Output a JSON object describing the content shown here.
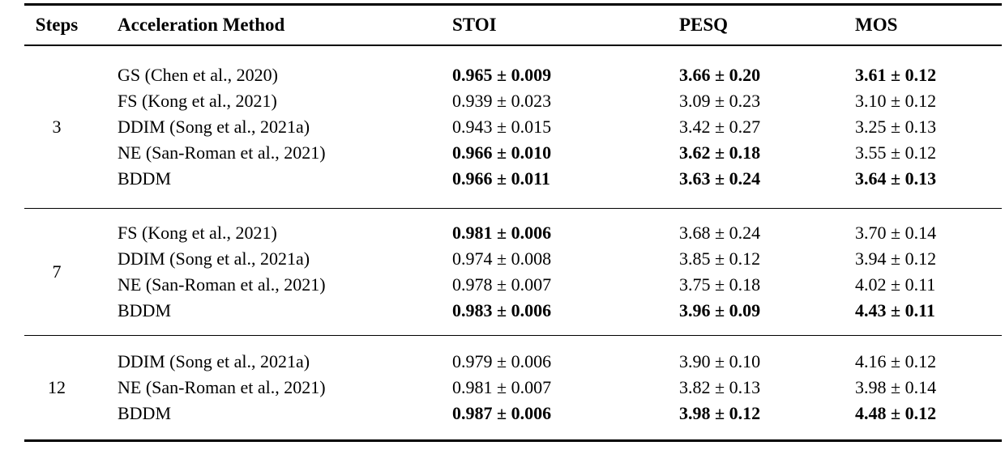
{
  "page": {
    "background": "#ffffff",
    "text_color": "#000000",
    "rule_color": "#000000"
  },
  "table": {
    "headers": {
      "steps": "Steps",
      "method": "Acceleration Method",
      "stoi": "STOI",
      "pesq": "PESQ",
      "mos": "MOS"
    },
    "sections": [
      {
        "steps": "3",
        "rows": [
          {
            "method": "GS (Chen et al., 2020)",
            "stoi": {
              "text": "0.965 ± 0.009",
              "style": "bold"
            },
            "pesq": {
              "text": "3.66 ± 0.20",
              "style": "bold"
            },
            "mos": {
              "text": "3.61 ± 0.12",
              "style": "bold"
            }
          },
          {
            "method": "FS (Kong et al., 2021)",
            "stoi": {
              "text": "0.939 ± 0.023",
              "style": "normal"
            },
            "pesq": {
              "text": "3.09 ± 0.23",
              "style": "normal"
            },
            "mos": {
              "text": "3.10 ± 0.12",
              "style": "normal"
            }
          },
          {
            "method": "DDIM (Song et al., 2021a)",
            "stoi": {
              "text": "0.943 ± 0.015",
              "style": "normal"
            },
            "pesq": {
              "text": "3.42 ± 0.27",
              "style": "normal"
            },
            "mos": {
              "text": "3.25 ± 0.13",
              "style": "normal"
            }
          },
          {
            "method": "NE (San-Roman et al., 2021)",
            "stoi": {
              "text": "0.966 ± 0.010",
              "style": "bold"
            },
            "pesq": {
              "text": "3.62 ± 0.18",
              "style": "bold"
            },
            "mos": {
              "text": "3.55 ± 0.12",
              "style": "normal"
            }
          },
          {
            "method": "BDDM",
            "stoi": {
              "text": "0.966 ± 0.011",
              "style": "bold"
            },
            "pesq": {
              "text": "3.63 ± 0.24",
              "style": "bold"
            },
            "mos": {
              "text": "3.64 ± 0.13",
              "style": "bold"
            }
          }
        ]
      },
      {
        "steps": "7",
        "rows": [
          {
            "method": "FS (Kong et al., 2021)",
            "stoi": {
              "text": "0.981 ± 0.006",
              "style": "bold"
            },
            "pesq": {
              "text": "3.68 ± 0.24",
              "style": "normal"
            },
            "mos": {
              "text": "3.70 ± 0.14",
              "style": "normal"
            }
          },
          {
            "method": "DDIM (Song et al., 2021a)",
            "stoi": {
              "text": "0.974 ± 0.008",
              "style": "normal"
            },
            "pesq": {
              "text": "3.85 ± 0.12",
              "style": "normal"
            },
            "mos": {
              "text": "3.94 ± 0.12",
              "style": "normal"
            }
          },
          {
            "method": "NE (San-Roman et al., 2021)",
            "stoi": {
              "text": "0.978 ± 0.007",
              "style": "normal"
            },
            "pesq": {
              "text": "3.75 ± 0.18",
              "style": "normal"
            },
            "mos": {
              "text": "4.02 ± 0.11",
              "style": "normal"
            }
          },
          {
            "method": "BDDM",
            "stoi": {
              "text": "0.983 ± 0.006",
              "style": "bold"
            },
            "pesq": {
              "text": "3.96 ± 0.09",
              "style": "bold"
            },
            "mos": {
              "text": "4.43 ± 0.11",
              "style": "bold"
            }
          }
        ]
      },
      {
        "steps": "12",
        "rows": [
          {
            "method": "DDIM (Song et al., 2021a)",
            "stoi": {
              "text": "0.979 ± 0.006",
              "style": "normal"
            },
            "pesq": {
              "text": "3.90 ± 0.10",
              "style": "normal"
            },
            "mos": {
              "text": "4.16 ± 0.12",
              "style": "normal"
            }
          },
          {
            "method": "NE (San-Roman et al., 2021)",
            "stoi": {
              "text": "0.981 ± 0.007",
              "style": "normal"
            },
            "pesq": {
              "text": "3.82 ± 0.13",
              "style": "normal"
            },
            "mos": {
              "text": "3.98 ± 0.14",
              "style": "normal"
            }
          },
          {
            "method": "BDDM",
            "stoi": {
              "text": "0.987 ± 0.006",
              "style": "bold"
            },
            "pesq": {
              "text": "3.98 ± 0.12",
              "style": "bold"
            },
            "mos": {
              "text": "4.48 ± 0.12",
              "style": "bold"
            }
          }
        ]
      }
    ]
  }
}
